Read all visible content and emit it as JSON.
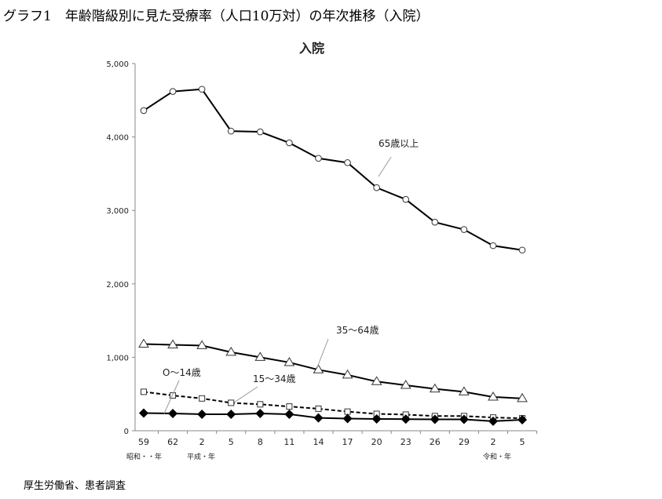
{
  "page_title": "グラフ1　年齢階級別に見た受療率（人口10万対）の年次推移（入院）",
  "source": "厚生労働省、患者調査",
  "chart_data": {
    "type": "line",
    "title": "入院",
    "xlabel": "",
    "ylabel": "",
    "categories": [
      "59",
      "62",
      "2",
      "5",
      "8",
      "11",
      "14",
      "17",
      "20",
      "23",
      "26",
      "29",
      "2",
      "5"
    ],
    "era_labels": [
      {
        "text": "昭和・・年",
        "at": "59"
      },
      {
        "text": "平成・年",
        "at": "2"
      },
      {
        "text": "令和・年",
        "at": "2 (令和)"
      }
    ],
    "ylim": [
      0,
      5000
    ],
    "yticks": [
      0,
      1000,
      2000,
      3000,
      4000,
      5000
    ],
    "ytick_labels": [
      "0",
      "1,000",
      "2,000",
      "3,000",
      "4,000",
      "5,000"
    ],
    "grid": false,
    "series": [
      {
        "name": "65歳以上",
        "marker": "circle",
        "line": "solid",
        "values": [
          4360,
          4620,
          4650,
          4080,
          4070,
          3920,
          3710,
          3650,
          3310,
          3150,
          2840,
          2740,
          2520,
          2460
        ]
      },
      {
        "name": "35～64歳",
        "marker": "triangle",
        "line": "solid",
        "values": [
          1180,
          1170,
          1160,
          1070,
          1000,
          930,
          830,
          760,
          670,
          620,
          570,
          530,
          460,
          440
        ]
      },
      {
        "name": "15～34歳",
        "marker": "square",
        "line": "dashed",
        "values": [
          530,
          480,
          440,
          380,
          360,
          330,
          300,
          260,
          230,
          220,
          200,
          200,
          180,
          170
        ]
      },
      {
        "name": "O～14歳",
        "marker": "diamond",
        "line": "solid",
        "values": [
          240,
          235,
          225,
          225,
          235,
          225,
          175,
          165,
          160,
          158,
          155,
          155,
          130,
          150
        ]
      }
    ]
  }
}
